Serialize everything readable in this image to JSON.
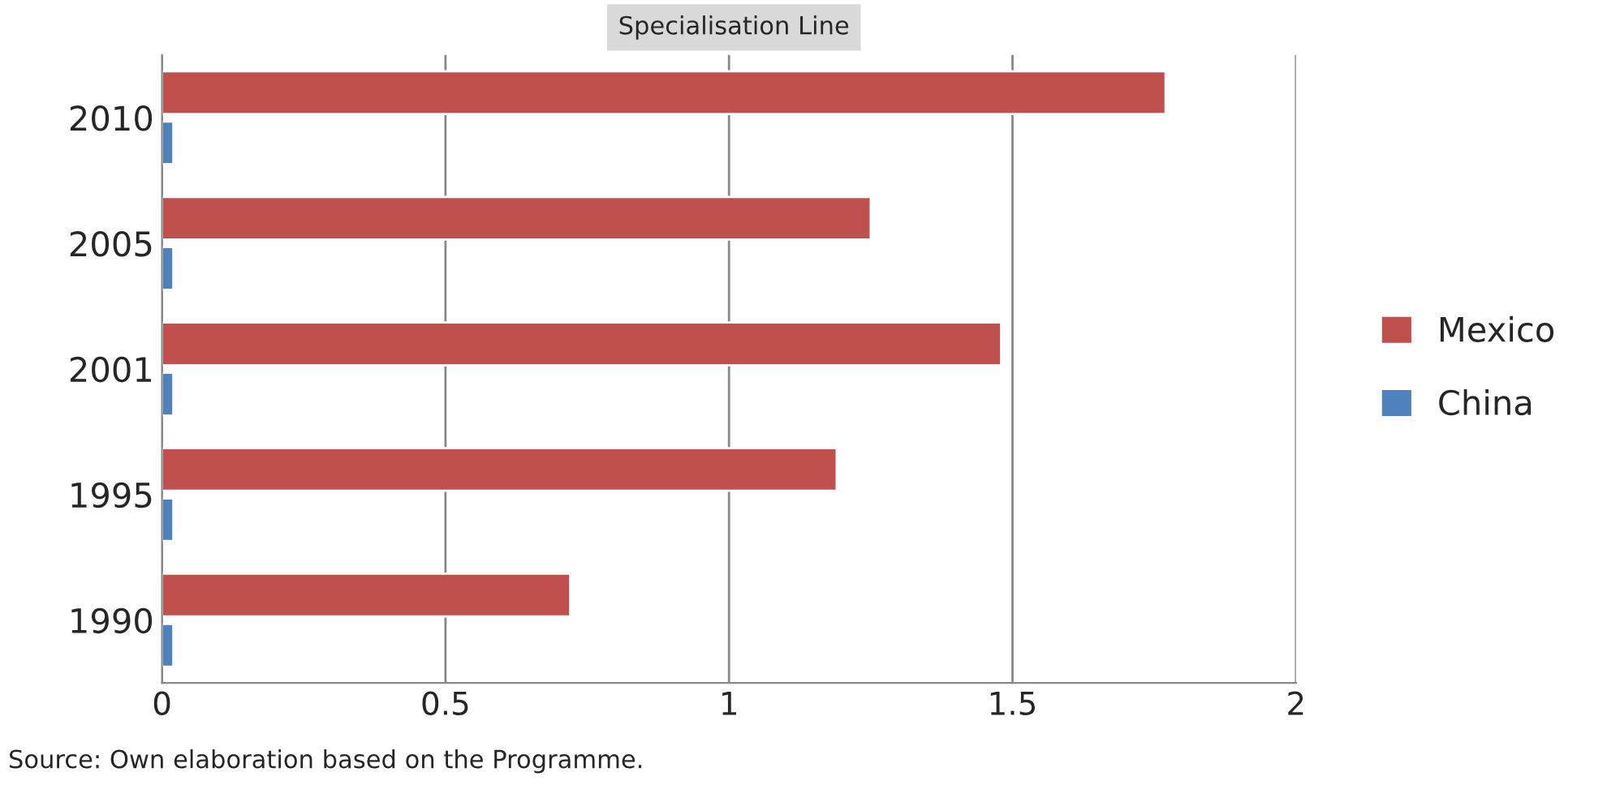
{
  "chart_data": {
    "type": "bar",
    "orientation": "horizontal",
    "title": "Specialisation Line",
    "categories": [
      "2010",
      "2005",
      "2001",
      "1995",
      "1990"
    ],
    "series": [
      {
        "name": "Mexico",
        "color": "#c0504d",
        "values": [
          1.77,
          1.25,
          1.48,
          1.19,
          0.72
        ]
      },
      {
        "name": "China",
        "color": "#4f81bd",
        "values": [
          0.02,
          0.02,
          0.02,
          0.02,
          0.02
        ]
      }
    ],
    "xlim": [
      0,
      2
    ],
    "xticks": [
      0,
      0.5,
      1,
      1.5,
      2
    ],
    "grid": "x",
    "legend": "right",
    "annotations": [
      "Source: Own elaboration based on the Programme."
    ]
  }
}
